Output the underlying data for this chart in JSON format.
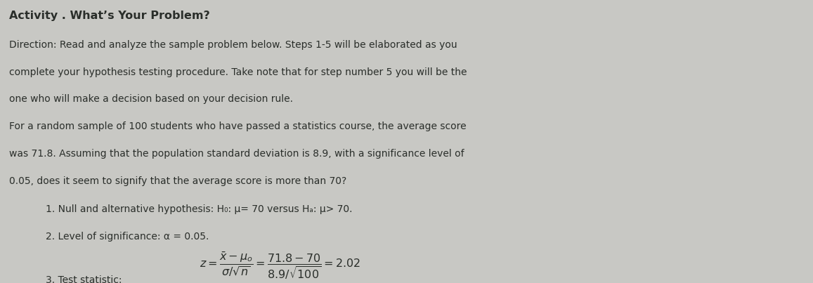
{
  "bg_color": "#c8c8c4",
  "page_color": "#e8e8e4",
  "text_color": "#2a2e2a",
  "title_text": "Activity . What’s Your Problem?",
  "title_fontsize": 11.5,
  "body_fontsize": 10.0,
  "lines": [
    "Direction: Read and analyze the sample problem below. Steps 1-5 will be elaborated as you",
    "complete your hypothesis testing procedure. Take note that for step number 5 you will be the",
    "one who will make a decision based on your decision rule.",
    "For a random sample of 100 students who have passed a statistics course, the average score",
    "was 71.8. Assuming that the population standard deviation is 8.9, with a significance level of",
    "0.05, does it seem to signify that the average score is more than 70?"
  ],
  "item1": "1. Null and alternative hypothesis: H₀: μ= 70 versus Hₐ: μ> 70.",
  "item2": "2. Level of significance: α = 0.05.",
  "item3_label": "3. Test statistic:"
}
